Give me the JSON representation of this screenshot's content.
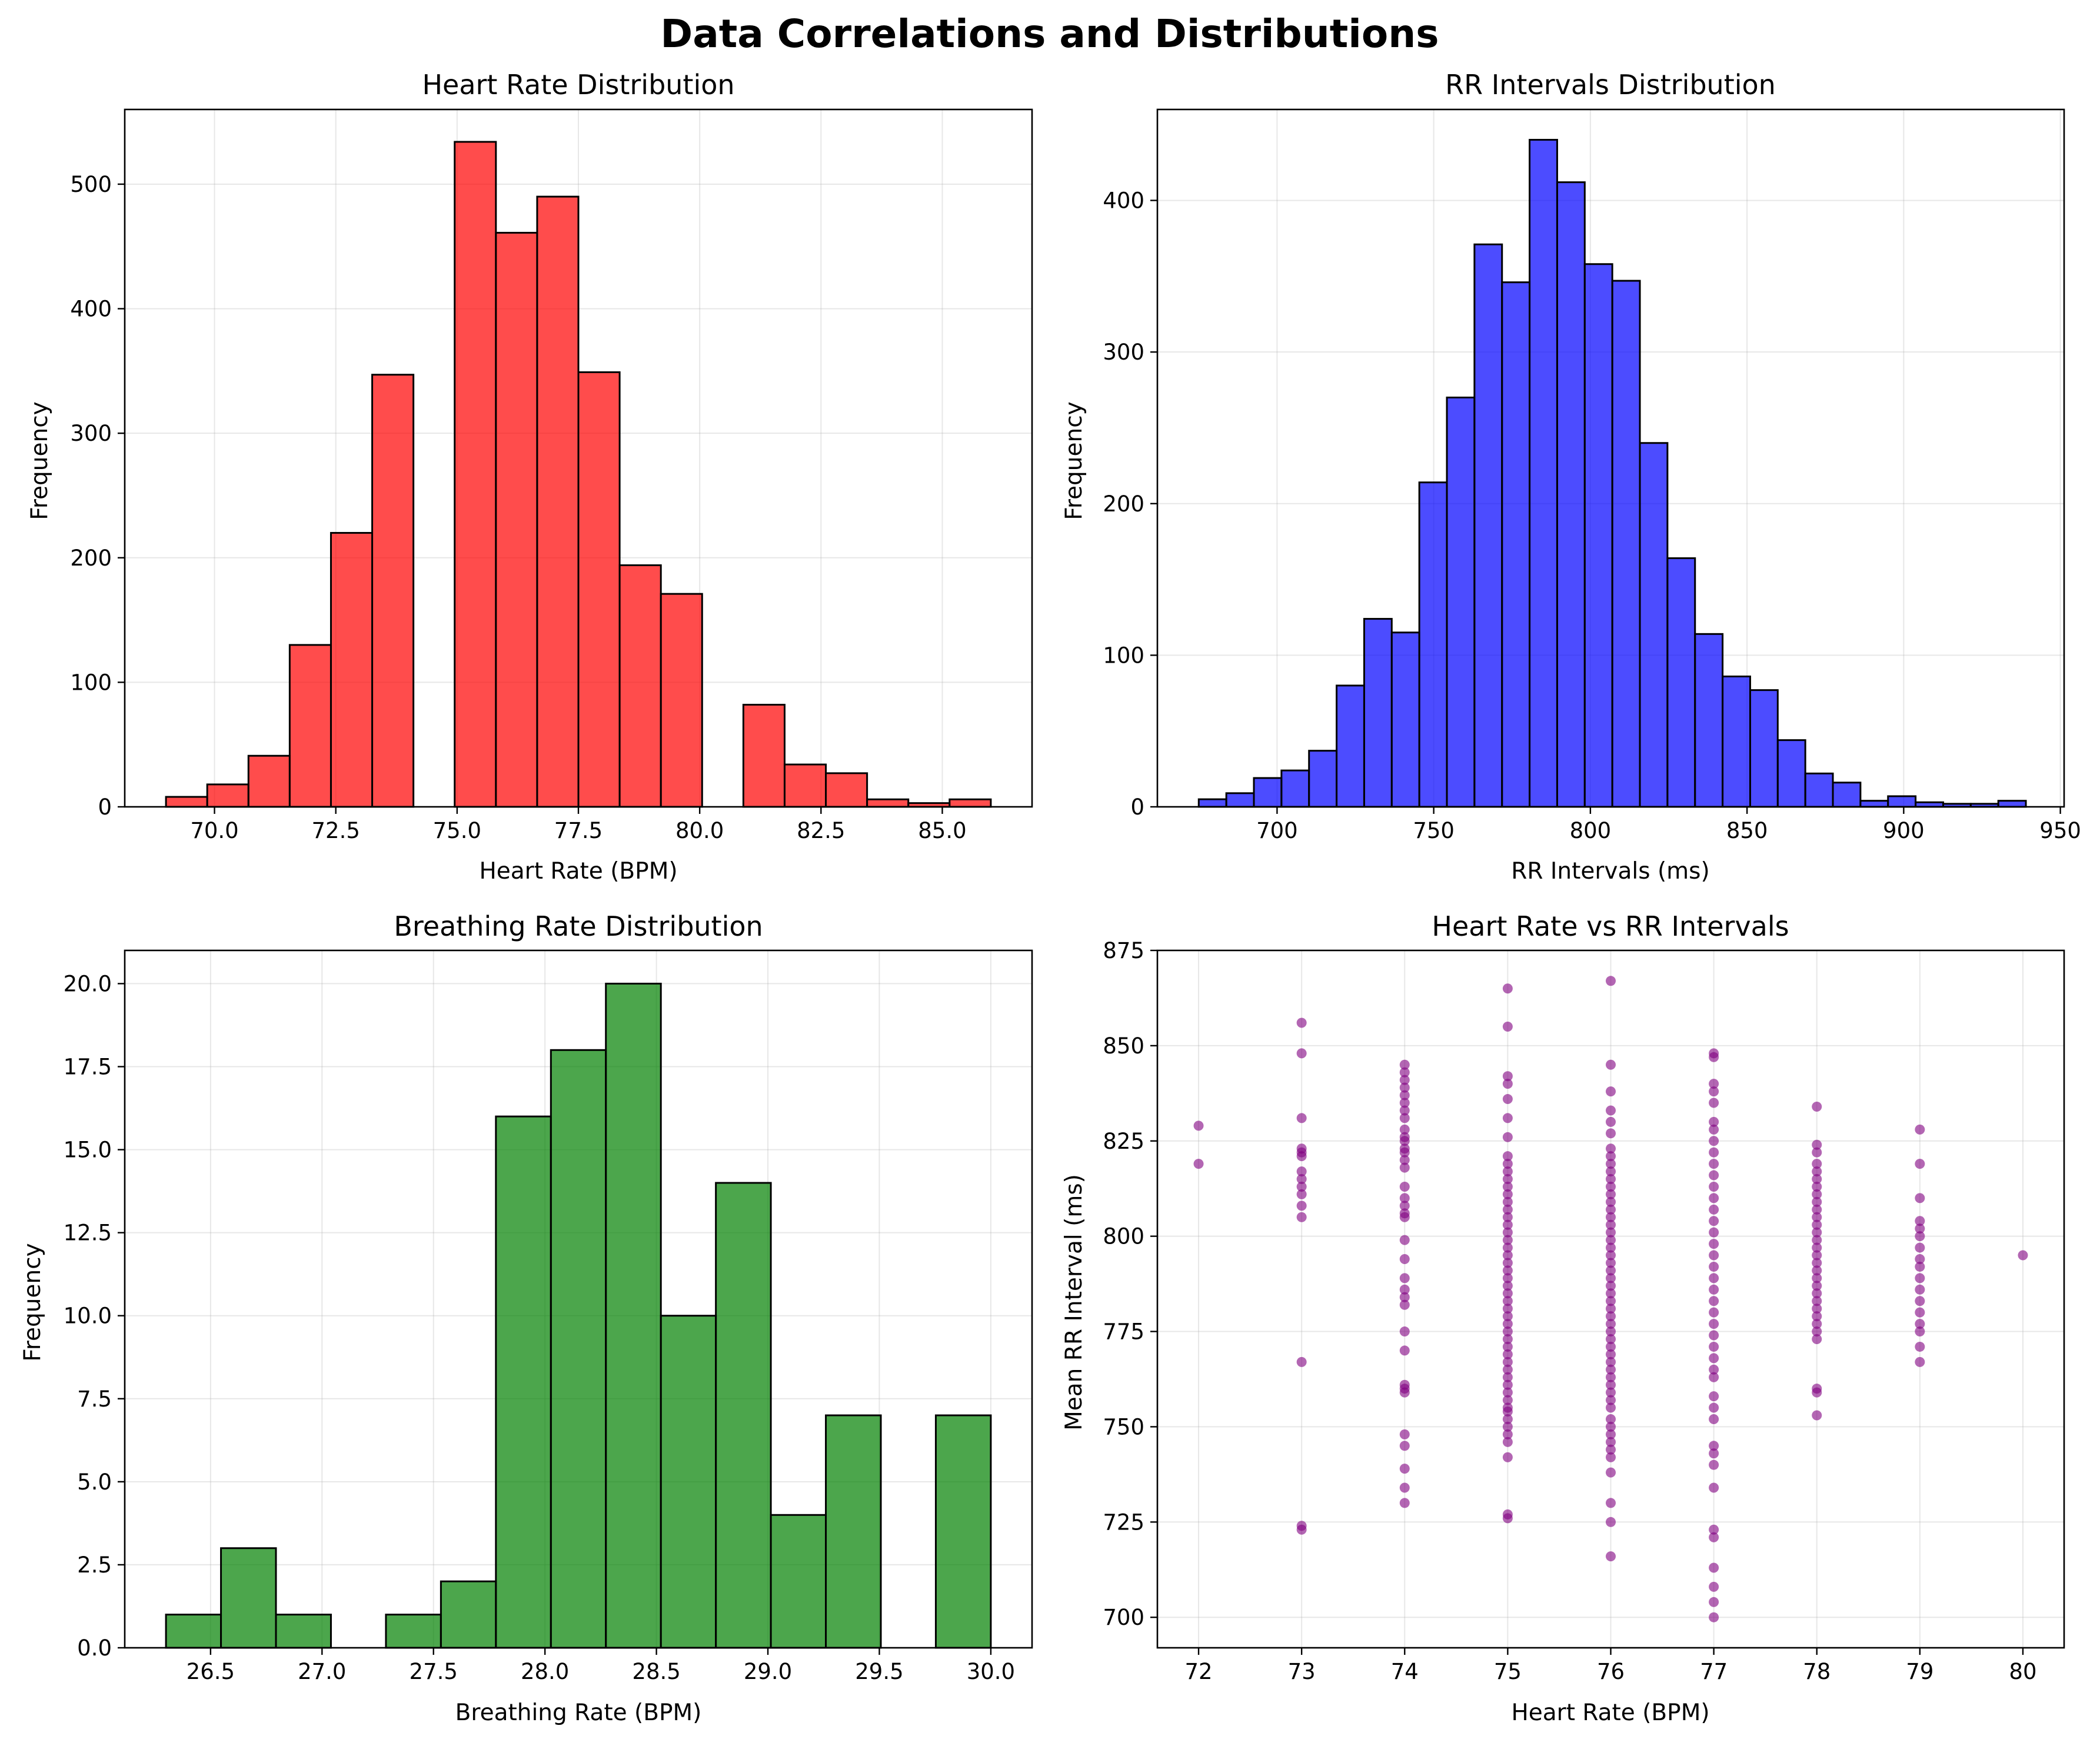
{
  "figure_title": "Data Correlations and Distributions",
  "chart_data": [
    {
      "type": "bar",
      "title": "Heart Rate Distribution",
      "xlabel": "Heart Rate (BPM)",
      "ylabel": "Frequency",
      "color": "#ff0000",
      "xlim": [
        68.15,
        86.85
      ],
      "ylim": [
        0,
        560
      ],
      "xticks": [
        70.0,
        72.5,
        75.0,
        77.5,
        80.0,
        82.5,
        85.0
      ],
      "xtick_labels": [
        "70.0",
        "72.5",
        "75.0",
        "77.5",
        "80.0",
        "82.5",
        "85.0"
      ],
      "yticks": [
        0,
        100,
        200,
        300,
        400,
        500
      ],
      "ytick_labels": [
        "0",
        "100",
        "200",
        "300",
        "400",
        "500"
      ],
      "grid": true,
      "bin_edges": [
        69.0,
        69.85,
        70.7,
        71.55,
        72.4,
        73.25,
        74.1,
        74.95,
        75.8,
        76.65,
        77.5,
        78.35,
        79.2,
        80.05,
        80.9,
        81.75,
        82.6,
        83.45,
        84.3,
        85.15,
        86.0
      ],
      "values": [
        8,
        18,
        41,
        130,
        220,
        347,
        0,
        534,
        461,
        490,
        349,
        194,
        171,
        0,
        82,
        34,
        27,
        6,
        3,
        6
      ]
    },
    {
      "type": "bar",
      "title": "RR Intervals Distribution",
      "xlabel": "RR Intervals (ms)",
      "ylabel": "Frequency",
      "color": "#0000ff",
      "xlim": [
        661.8,
        951.2
      ],
      "ylim": [
        0,
        460
      ],
      "xticks": [
        700,
        750,
        800,
        850,
        900,
        950
      ],
      "xtick_labels": [
        "700",
        "750",
        "800",
        "850",
        "900",
        "950"
      ],
      "yticks": [
        0,
        100,
        200,
        300,
        400
      ],
      "ytick_labels": [
        "0",
        "100",
        "200",
        "300",
        "400"
      ],
      "grid": true,
      "bin_edges": [
        675.0,
        683.8,
        692.6,
        701.4,
        710.2,
        719.0,
        727.8,
        736.6,
        745.4,
        754.2,
        763.0,
        771.8,
        780.6,
        789.4,
        798.2,
        807.0,
        815.8,
        824.6,
        833.4,
        842.2,
        851.0,
        859.8,
        868.6,
        877.4,
        886.2,
        895.0,
        903.8,
        912.6,
        921.4,
        930.2,
        939.0
      ],
      "values": [
        5,
        9,
        19,
        24,
        37,
        80,
        124,
        115,
        214,
        270,
        371,
        346,
        440,
        412,
        358,
        347,
        240,
        164,
        114,
        86,
        77,
        44,
        22,
        16,
        4,
        7,
        3,
        2,
        2,
        4
      ]
    },
    {
      "type": "bar",
      "title": "Breathing Rate Distribution",
      "xlabel": "Breathing Rate (BPM)",
      "ylabel": "Frequency",
      "color": "#008000",
      "xlim": [
        26.115,
        30.185
      ],
      "ylim": [
        0,
        21
      ],
      "xticks": [
        26.5,
        27.0,
        27.5,
        28.0,
        28.5,
        29.0,
        29.5,
        30.0
      ],
      "xtick_labels": [
        "26.5",
        "27.0",
        "27.5",
        "28.0",
        "28.5",
        "29.0",
        "29.5",
        "30.0"
      ],
      "yticks": [
        0.0,
        2.5,
        5.0,
        7.5,
        10.0,
        12.5,
        15.0,
        17.5,
        20.0
      ],
      "ytick_labels": [
        "0.0",
        "2.5",
        "5.0",
        "7.5",
        "10.0",
        "12.5",
        "15.0",
        "17.5",
        "20.0"
      ],
      "grid": true,
      "bin_edges": [
        26.3,
        26.5467,
        26.7933,
        27.04,
        27.2867,
        27.5333,
        27.78,
        28.0267,
        28.2733,
        28.52,
        28.7667,
        29.0133,
        29.26,
        29.5067,
        29.7533,
        30.0
      ],
      "values": [
        1,
        3,
        1,
        0,
        1,
        2,
        16,
        18,
        20,
        10,
        14,
        4,
        7,
        0,
        7
      ]
    },
    {
      "type": "scatter",
      "title": "Heart Rate vs RR Intervals",
      "xlabel": "Heart Rate (BPM)",
      "ylabel": "Mean RR Interval (ms)",
      "color": "#800080",
      "xlim": [
        71.6,
        80.4
      ],
      "ylim": [
        692.0,
        875.0
      ],
      "xticks": [
        72,
        73,
        74,
        75,
        76,
        77,
        78,
        79,
        80
      ],
      "xtick_labels": [
        "72",
        "73",
        "74",
        "75",
        "76",
        "77",
        "78",
        "79",
        "80"
      ],
      "yticks": [
        700,
        725,
        750,
        775,
        800,
        825,
        850,
        875
      ],
      "ytick_labels": [
        "700",
        "725",
        "750",
        "775",
        "800",
        "825",
        "850",
        "875"
      ],
      "grid": true,
      "points": [
        {
          "x": 72,
          "y": [
            819,
            829
          ]
        },
        {
          "x": 73,
          "y": [
            723,
            724,
            767,
            805,
            808,
            811,
            813,
            815,
            817,
            821,
            822,
            823,
            831,
            848,
            856
          ]
        },
        {
          "x": 74,
          "y": [
            730,
            734,
            739,
            745,
            748,
            759,
            760,
            761,
            770,
            775,
            782,
            784,
            786,
            789,
            794,
            799,
            805,
            806,
            808,
            810,
            813,
            818,
            820,
            822,
            823,
            825,
            826,
            828,
            831,
            833,
            835,
            837,
            839,
            841,
            843,
            845
          ]
        },
        {
          "x": 75,
          "y": [
            726,
            727,
            742,
            746,
            748,
            750,
            752,
            754,
            755,
            757,
            759,
            761,
            763,
            765,
            767,
            769,
            771,
            773,
            775,
            777,
            779,
            781,
            783,
            785,
            787,
            789,
            791,
            793,
            795,
            797,
            799,
            801,
            803,
            805,
            807,
            809,
            811,
            813,
            815,
            817,
            819,
            821,
            826,
            831,
            836,
            840,
            842,
            855,
            865
          ]
        },
        {
          "x": 76,
          "y": [
            716,
            725,
            730,
            738,
            742,
            744,
            746,
            748,
            750,
            752,
            755,
            757,
            759,
            761,
            763,
            765,
            767,
            769,
            771,
            773,
            775,
            777,
            779,
            781,
            783,
            785,
            787,
            789,
            791,
            793,
            795,
            797,
            799,
            801,
            803,
            805,
            807,
            809,
            811,
            813,
            815,
            817,
            819,
            821,
            823,
            827,
            830,
            833,
            838,
            845,
            867
          ]
        },
        {
          "x": 77,
          "y": [
            700,
            704,
            708,
            713,
            721,
            723,
            734,
            740,
            743,
            745,
            752,
            755,
            758,
            763,
            765,
            768,
            771,
            774,
            777,
            780,
            783,
            786,
            789,
            792,
            795,
            798,
            801,
            804,
            807,
            810,
            813,
            816,
            819,
            822,
            825,
            828,
            830,
            835,
            838,
            840,
            847,
            848
          ]
        },
        {
          "x": 78,
          "y": [
            753,
            759,
            760,
            773,
            775,
            777,
            779,
            781,
            783,
            785,
            787,
            789,
            791,
            793,
            795,
            797,
            799,
            801,
            803,
            805,
            807,
            809,
            811,
            813,
            815,
            817,
            819,
            822,
            824,
            834
          ]
        },
        {
          "x": 79,
          "y": [
            767,
            771,
            775,
            777,
            780,
            783,
            786,
            789,
            792,
            794,
            797,
            800,
            802,
            804,
            810,
            819,
            828
          ]
        },
        {
          "x": 80,
          "y": [
            795
          ]
        }
      ]
    }
  ]
}
